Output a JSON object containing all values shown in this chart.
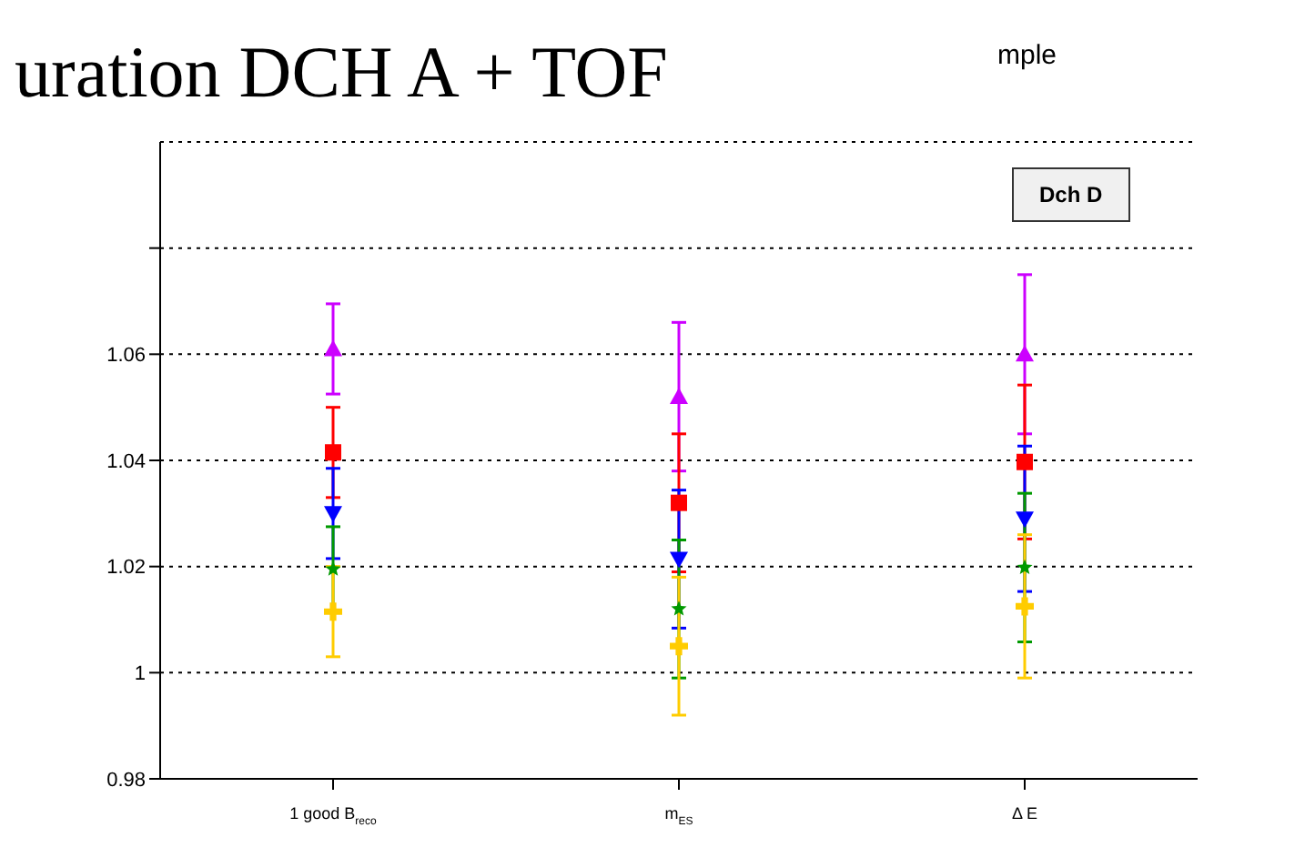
{
  "chart_data": {
    "type": "scatter",
    "title": "uration DCH A + TOF",
    "subtitle": "mple",
    "annotations": [
      "Dch D"
    ],
    "categories": [
      "1 good B$_{reco}$",
      "m$_{ES}$",
      "Δ E"
    ],
    "ylim": [
      0.98,
      1.1
    ],
    "yticks": [
      0.98,
      1,
      1.02,
      1.04,
      1.06,
      {
        "value": 1.08,
        "label": null
      }
    ],
    "grid": "y",
    "series": [
      {
        "color": "#cc00ff",
        "marker": "triangle",
        "values": [
          1.061,
          1.052,
          1.06
        ],
        "errors": [
          0.0085,
          0.014,
          0.015
        ]
      },
      {
        "color": "#ff0000",
        "marker": "square",
        "values": [
          1.0415,
          1.032,
          1.0397
        ],
        "errors": [
          0.0085,
          0.013,
          0.0145
        ]
      },
      {
        "color": "#0000ff",
        "marker": "triangle-down",
        "values": [
          1.03,
          1.0214,
          1.029
        ],
        "errors": [
          0.0085,
          0.013,
          0.0137
        ]
      },
      {
        "color": "#009900",
        "marker": "star",
        "values": [
          1.0195,
          1.012,
          1.0198
        ],
        "errors": [
          0.008,
          0.013,
          0.014
        ]
      },
      {
        "color": "#ffcc00",
        "marker": "cross",
        "values": [
          1.0115,
          1.005,
          1.0125
        ],
        "errors": [
          0.0085,
          0.013,
          0.0135
        ]
      }
    ]
  }
}
